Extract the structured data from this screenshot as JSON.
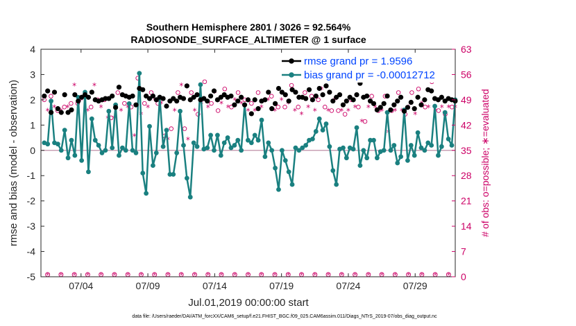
{
  "chart_data": {
    "type": "line",
    "title_line1": "Southern Hemisphere 2801 / 3026 = 92.564%",
    "title_line2": "RADIOSONDE_SURFACE_ALTIMETER @ 1 surface",
    "ylabel": "rmse and bias (model - observation)",
    "ylabel_right": "# of obs: o=possible; ∗=evaluated",
    "xlabel": "Jul.01,2019 00:00:00 start",
    "footnote": "data file: /Users/raeder/DAI/ATM_forcXX/CAM6_setup/f.e21.FHIST_BGC.f09_025.CAM6assim.011/Diags_NTrS_2019-07/obs_diag_output.nc",
    "ylim": [
      -5,
      4
    ],
    "ylim_right": [
      0,
      63
    ],
    "xlim": [
      1,
      32
    ],
    "y_ticks": [
      "-5",
      "-4",
      "-3",
      "-2",
      "-1",
      "0",
      "1",
      "2",
      "3",
      "4"
    ],
    "y_right_ticks": [
      "0",
      "7",
      "14",
      "21",
      "28",
      "35",
      "42",
      "49",
      "56",
      "63"
    ],
    "x_tick_positions": [
      4,
      9,
      14,
      19,
      24,
      29
    ],
    "x_ticks": [
      "07/04",
      "07/09",
      "07/14",
      "07/19",
      "07/24",
      "07/29"
    ],
    "legend": [
      {
        "name": "rmse grand pr = 1.9596",
        "color": "#000000"
      },
      {
        "name": "bias grand pr = -0.00012712",
        "color": "#1a8080"
      }
    ],
    "series": [
      {
        "name": "rmse",
        "color": "#000000",
        "values": [
          2.15,
          2.35,
          1.5,
          2.3,
          1.65,
          1.5,
          2.2,
          1.5,
          1.6,
          2.2,
          1.95,
          2.1,
          2.2,
          2.1,
          2.3,
          2.0,
          1.95,
          2.0,
          2.05,
          2.05,
          2.15,
          1.7,
          2.5,
          2.2,
          2.15,
          2.1,
          2.15,
          1.8,
          2.45,
          2.4,
          2.15,
          2.05,
          2.15,
          2.0,
          2.1,
          2.05,
          1.75,
          1.95,
          2.05,
          1.95,
          2.1,
          2.05,
          2.55,
          2.0,
          2.1,
          2.2,
          2.0,
          2.05,
          1.95,
          2.15,
          2.35,
          2.0,
          2.1,
          2.2,
          2.1,
          2.15,
          1.8,
          1.95,
          2.1,
          1.8,
          2.0,
          1.45,
          2.0,
          1.65,
          1.95,
          2.0,
          2.3,
          1.65,
          1.85,
          2.45,
          2.3,
          2.2,
          1.95,
          2.4,
          2.3,
          2.1,
          2.1,
          2.05,
          2.4,
          2.0,
          2.15,
          2.45,
          2.2,
          2.55,
          2.3,
          1.95,
          2.1,
          2.2,
          1.8,
          1.95,
          2.1,
          2.0,
          2.2,
          2.65,
          2.1,
          2.15,
          1.95,
          1.85,
          1.6,
          1.7,
          1.85,
          2.15,
          1.6,
          1.8,
          1.95,
          2.1,
          1.55,
          1.7,
          1.9,
          1.65,
          2.1,
          1.8,
          2.0,
          2.4,
          2.35,
          2.05,
          2.0,
          2.1,
          1.95,
          2.05,
          2.0,
          1.95
        ]
      },
      {
        "name": "bias",
        "color": "#1a8080",
        "values": [
          0.3,
          0.25,
          1.95,
          0.3,
          0.25,
          0.0,
          0.8,
          -0.3,
          0.4,
          -0.2,
          2.1,
          -0.4,
          2.3,
          -0.85,
          1.25,
          0.4,
          0.2,
          -0.1,
          0.0,
          1.55,
          0.1,
          1.8,
          -0.2,
          0.1,
          0.0,
          1.85,
          0.0,
          -0.1,
          3.05,
          -0.9,
          -1.7,
          0.95,
          -0.6,
          -0.1,
          2.1,
          0.15,
          0.8,
          -0.95,
          -0.95,
          -0.1,
          1.55,
          0.2,
          -1.1,
          -1.85,
          0.3,
          0.15,
          2.6,
          0.05,
          0.1,
          0.6,
          0.0,
          0.6,
          -0.2,
          0.3,
          0.5,
          0.1,
          0.2,
          0.4,
          0.0,
          1.8,
          0.4,
          0.3,
          0.6,
          0.4,
          1.2,
          -0.25,
          0.3,
          0.0,
          -0.7,
          -1.55,
          0.0,
          -0.4,
          -0.85,
          -1.35,
          0.1,
          0.0,
          0.1,
          0.2,
          0.4,
          0.45,
          0.75,
          1.25,
          0.8,
          1.05,
          0.15,
          -0.8,
          -1.35,
          0.05,
          0.1,
          -0.3,
          0.1,
          0.05,
          0.9,
          -0.6,
          0.0,
          -0.3,
          0.4,
          0.4,
          -0.3,
          -0.05,
          0.0,
          1.5,
          0.0,
          0.2,
          -0.5,
          -0.25,
          1.6,
          -0.4,
          0.2,
          -0.2,
          0.7,
          0.1,
          0.0,
          0.3,
          0.2,
          1.75,
          -0.2,
          0.15,
          1.5,
          0.45,
          0.2,
          2.0
        ]
      },
      {
        "name": "obs possible (right axis)",
        "color": "#cc0066",
        "values": [
          49,
          48,
          50,
          49,
          46,
          48,
          47,
          49,
          48,
          55,
          48,
          51,
          50,
          48,
          47,
          55,
          49,
          49,
          49,
          46,
          44,
          46,
          51,
          48,
          48,
          49,
          47,
          41,
          55,
          47,
          48,
          49,
          51,
          51,
          48,
          50,
          39,
          40,
          41,
          48,
          51,
          55,
          41,
          40,
          51,
          48,
          45,
          50,
          54,
          49,
          48,
          53,
          46,
          50,
          52,
          49,
          47,
          51,
          51,
          50,
          49,
          48,
          48,
          48,
          51,
          49,
          49,
          51,
          50,
          48,
          47,
          51,
          47,
          50,
          53,
          48,
          47,
          47,
          51,
          49,
          50,
          48,
          49,
          54,
          47,
          48,
          46,
          51,
          46,
          48,
          45,
          48,
          49,
          49,
          47,
          45,
          43,
          49,
          50,
          49,
          46,
          48,
          50,
          42,
          46,
          48,
          51,
          48,
          45,
          49,
          51,
          47,
          52,
          50,
          47,
          49,
          54,
          48,
          46,
          49,
          45,
          49,
          47,
          49
        ]
      },
      {
        "name": "obs evaluated (right axis)",
        "color": "#cc0066",
        "values": [
          47,
          46,
          48,
          47,
          44,
          46,
          45,
          47,
          46,
          53,
          46,
          49,
          48,
          46,
          45,
          53,
          47,
          47,
          47,
          44,
          42,
          44,
          49,
          46,
          46,
          47,
          45,
          39,
          53,
          45,
          46,
          47,
          49,
          49,
          46,
          48,
          37,
          38,
          39,
          46,
          49,
          53,
          39,
          38,
          49,
          46,
          43,
          48,
          52,
          47,
          46,
          51,
          44,
          48,
          50,
          47,
          45,
          49,
          49,
          48,
          47,
          46,
          46,
          46,
          49,
          47,
          47,
          49,
          48,
          46,
          45,
          49,
          45,
          48,
          51,
          46,
          45,
          45,
          49,
          47,
          48,
          46,
          47,
          52,
          45,
          46,
          44,
          49,
          44,
          46,
          43,
          46,
          47,
          47,
          45,
          43,
          41,
          47,
          48,
          47,
          44,
          46,
          48,
          40,
          44,
          46,
          49,
          46,
          43,
          47,
          49,
          45,
          50,
          48,
          45,
          47,
          52,
          46,
          44,
          47,
          43,
          47,
          45,
          47
        ]
      },
      {
        "name": "obs possible lower (right axis)",
        "color": "#cc0066",
        "values": [
          0.6,
          0.6,
          0.6,
          0.6,
          0.6,
          0.6,
          0.6,
          0.6,
          0.6,
          0.6,
          0.6,
          0.6,
          0.6,
          0.6,
          0.6,
          0.6,
          0.6,
          0.6,
          0.6,
          0.6,
          0.6,
          0.6,
          0.6,
          0.6,
          0.6,
          0.6,
          0.6,
          0.6,
          0.6,
          0.6,
          0.6
        ]
      }
    ]
  }
}
